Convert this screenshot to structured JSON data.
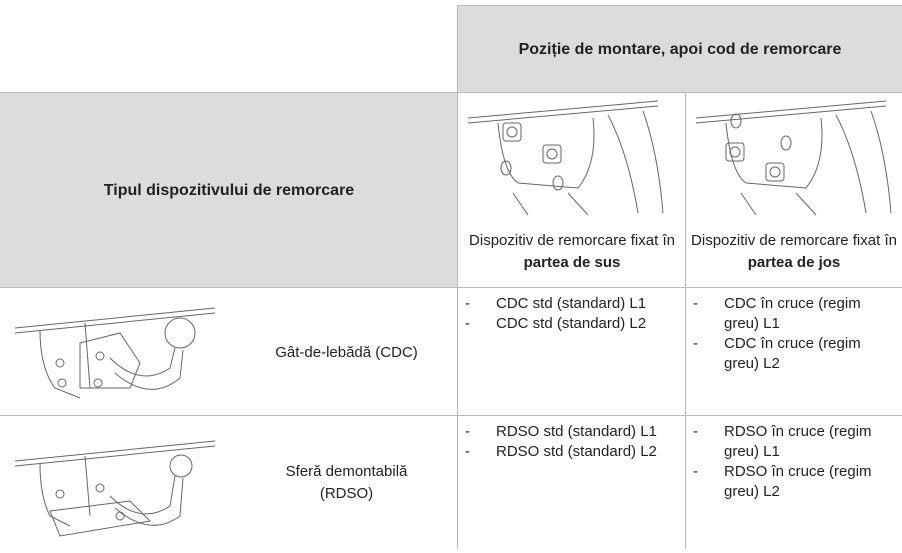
{
  "table": {
    "header": "Poziție de montare, apoi cod de remorcare",
    "row_header": "Tipul dispozitivului de remorcare",
    "columns": [
      {
        "text": "Dispozitiv de remorcare fixat în",
        "bold": "partea de sus"
      },
      {
        "text": "Dispozitiv de remorcare fixat în",
        "bold": "partea de jos"
      }
    ],
    "rows": [
      {
        "type": "Gât-de-lebădă (CDC)",
        "codes": [
          [
            "CDC std (standard) L1",
            "CDC std (standard) L2"
          ],
          [
            "CDC în cruce (regim greu) L1",
            "CDC în cruce (regim greu) L2"
          ]
        ]
      },
      {
        "type": "Sferă demontabilă (RDSO)",
        "codes": [
          [
            "RDSO std (standard) L1",
            "RDSO std (standard) L2"
          ],
          [
            "RDSO în cruce (regim greu) L1",
            "RDSO în cruce (regim greu) L2"
          ]
        ]
      }
    ]
  }
}
